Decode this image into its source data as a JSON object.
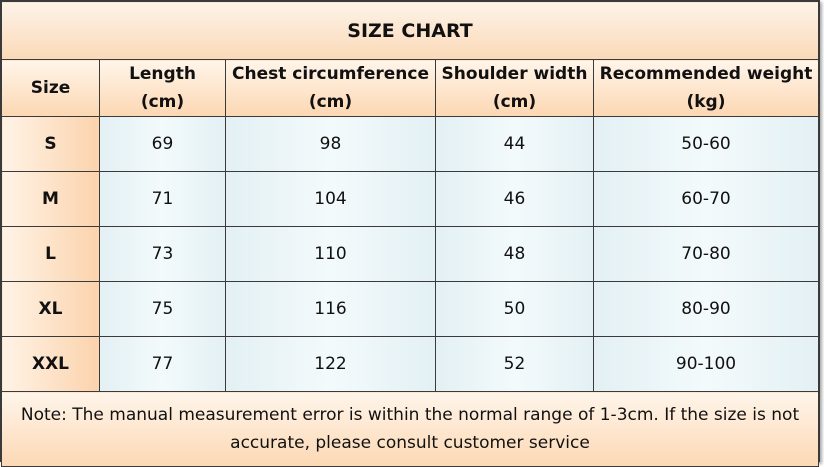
{
  "title": "SIZE CHART",
  "headers": {
    "size": "Size",
    "length": [
      "Length",
      "(cm)"
    ],
    "chest": [
      "Chest circumference",
      "(cm)"
    ],
    "shoulder": [
      "Shoulder width",
      "(cm)"
    ],
    "weight": [
      "Recommended weight",
      "(kg)"
    ]
  },
  "rows": [
    {
      "size": "S",
      "length": "69",
      "chest": "98",
      "shoulder": "44",
      "weight": "50-60"
    },
    {
      "size": "M",
      "length": "71",
      "chest": "104",
      "shoulder": "46",
      "weight": "60-70"
    },
    {
      "size": "L",
      "length": "73",
      "chest": "110",
      "shoulder": "48",
      "weight": "70-80"
    },
    {
      "size": "XL",
      "length": "75",
      "chest": "116",
      "shoulder": "50",
      "weight": "80-90"
    },
    {
      "size": "XXL",
      "length": "77",
      "chest": "122",
      "shoulder": "52",
      "weight": "90-100"
    }
  ],
  "note": "Note: The manual measurement error is within the normal range of 1-3cm. If the size is not accurate, please consult customer service"
}
